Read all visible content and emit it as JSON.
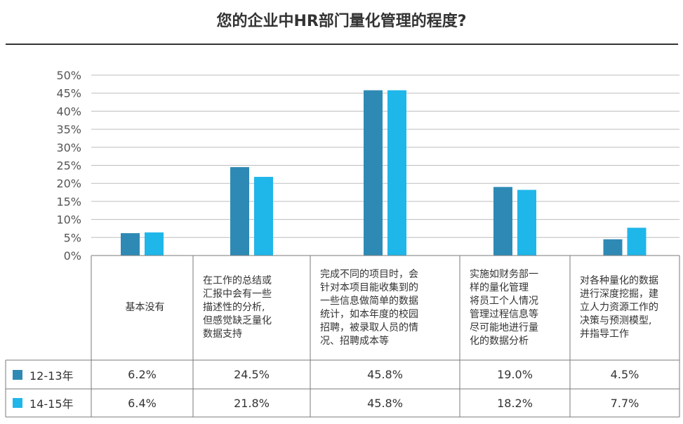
{
  "title": "您的企业中HR部门量化管理的程度?",
  "chart_data": {
    "type": "bar",
    "title": "您的企业中HR部门量化管理的程度?",
    "ylim": [
      0,
      50
    ],
    "yticks": [
      "0%",
      "5%",
      "10%",
      "15%",
      "20%",
      "25%",
      "30%",
      "35%",
      "40%",
      "45%",
      "50%"
    ],
    "grid": true,
    "categories": [
      "基本没有",
      "在工作的总结或汇报中会有一些描述性的分析，但感觉缺乏量化数据支持",
      "完成不同的项目时，会针对本项目能收集到的一些信息做简单的数据统计，如本年度的校园招聘，被录取人员的情况、招聘成本等",
      "实施如财务部一样的量化管理将员工个人情况管理过程信息等尽可能地进行量化的数据分析",
      "对各种量化的数据进行深度挖掘，建立人力资源工作的决策与预测模型，并指导工作"
    ],
    "category_lines": [
      [
        "基本没有"
      ],
      [
        "在工作的总结或",
        "汇报中会有一些",
        "描述性的分析,",
        "但感觉缺乏量化",
        "数据支持"
      ],
      [
        "完成不同的项目时，会",
        "针对本项目能收集到的",
        "一些信息做简单的数据",
        "统计，如本年度的校园",
        "招聘，被录取人员的情",
        "况、招聘成本等"
      ],
      [
        "实施如财务部一",
        "样的量化管理",
        "将员工个人情况",
        "管理过程信息等",
        "尽可能地进行量",
        "化的数据分析"
      ],
      [
        "对各种量化的数据",
        "进行深度挖掘，建",
        "立人力资源工作的",
        "决策与预测模型,",
        "并指导工作"
      ]
    ],
    "series": [
      {
        "name": "12-13年",
        "color": "#2e8ab5",
        "values": [
          6.2,
          24.5,
          45.8,
          19.0,
          4.5
        ],
        "labels": [
          "6.2%",
          "24.5%",
          "45.8%",
          "19.0%",
          "4.5%"
        ]
      },
      {
        "name": "14-15年",
        "color": "#1fb6ea",
        "values": [
          6.4,
          21.8,
          45.8,
          18.2,
          7.7
        ],
        "labels": [
          "6.4%",
          "21.8%",
          "45.8%",
          "18.2%",
          "7.7%"
        ]
      }
    ]
  }
}
